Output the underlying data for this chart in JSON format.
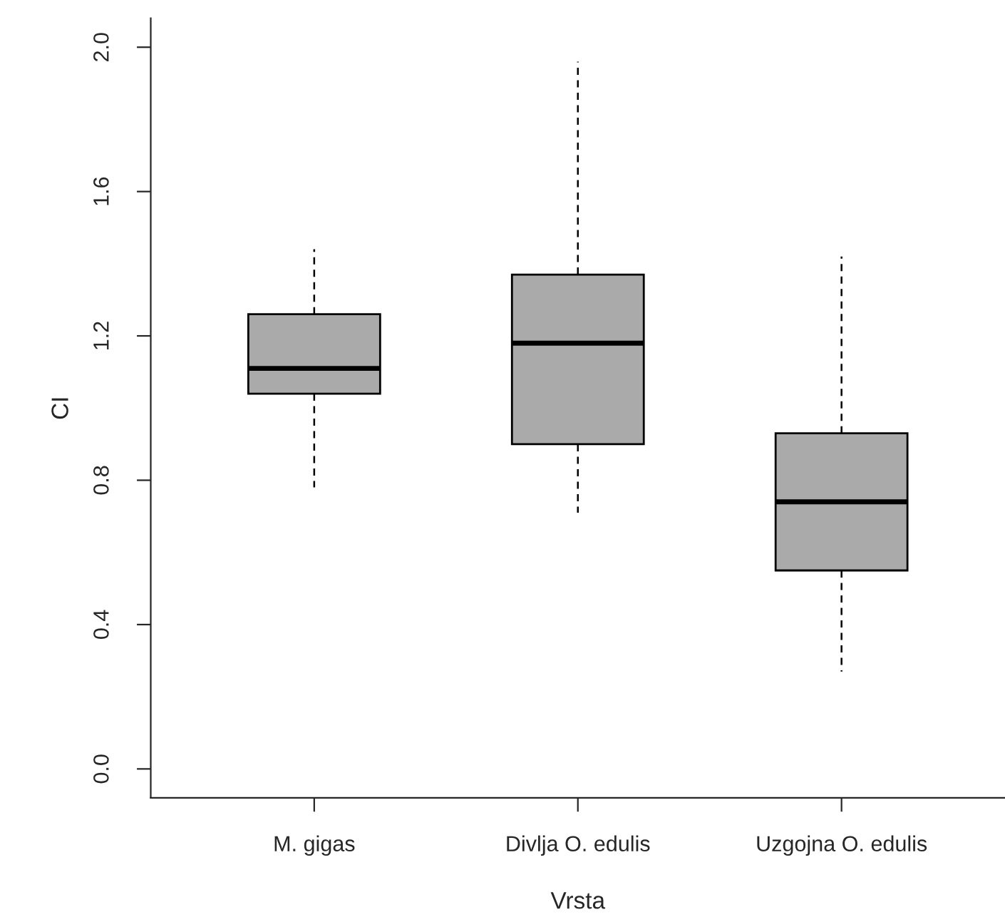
{
  "chart_data": {
    "type": "box",
    "xlabel": "Vrsta",
    "ylabel": "CI",
    "categories": [
      "M. gigas",
      "Divlja O. edulis",
      "Uzgojna O. edulis"
    ],
    "color": "#aaaaaa",
    "ylim": [
      -0.08,
      2.08
    ],
    "yticks": [
      {
        "value": 0,
        "label": "0.0"
      },
      {
        "value": 0.4,
        "label": "0.4"
      },
      {
        "value": 0.8,
        "label": "0.8"
      },
      {
        "value": 1.2,
        "label": "1.2"
      },
      {
        "value": 1.6,
        "label": "1.6"
      },
      {
        "value": 2.0,
        "label": "2.0"
      }
    ],
    "boxes": [
      {
        "low": 0.78,
        "q1": 1.04,
        "median": 1.11,
        "q3": 1.26,
        "high": 1.44
      },
      {
        "low": 0.71,
        "q1": 0.9,
        "median": 1.18,
        "q3": 1.37,
        "high": 1.96
      },
      {
        "low": 0.27,
        "q1": 0.55,
        "median": 0.74,
        "q3": 0.93,
        "high": 1.42
      }
    ]
  }
}
